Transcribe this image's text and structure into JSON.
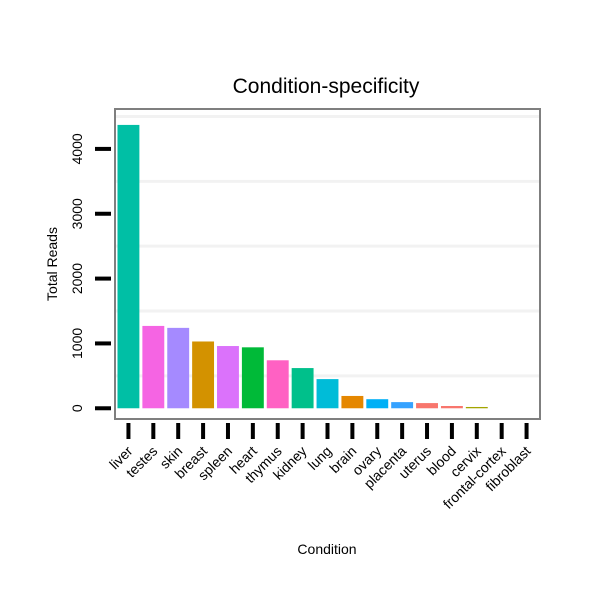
{
  "chart_data": {
    "type": "bar",
    "title": "Condition-specificity",
    "xlabel": "Condition",
    "ylabel": "Total Reads",
    "ylim": [
      -150,
      4600
    ],
    "yticks": [
      0,
      1000,
      2000,
      3000,
      4000
    ],
    "categories": [
      "liver",
      "testes",
      "skin",
      "breast",
      "spleen",
      "heart",
      "thymus",
      "kidney",
      "lung",
      "brain",
      "ovary",
      "placenta",
      "uterus",
      "blood",
      "cervix",
      "frontal-cortex",
      "fibroblast"
    ],
    "values": [
      4370,
      1270,
      1240,
      1030,
      960,
      940,
      740,
      620,
      450,
      190,
      140,
      95,
      80,
      35,
      20,
      0,
      0
    ],
    "colors": [
      "#00BFA5",
      "#F564E3",
      "#A58AFF",
      "#D39200",
      "#DB72FB",
      "#00BA38",
      "#FF61C3",
      "#00C08B",
      "#00BCD8",
      "#E58700",
      "#00B0F6",
      "#35A2FF",
      "#F8766D",
      "#F8766D",
      "#A3A500",
      "#C99800",
      "#6BB100"
    ],
    "grid": true
  }
}
